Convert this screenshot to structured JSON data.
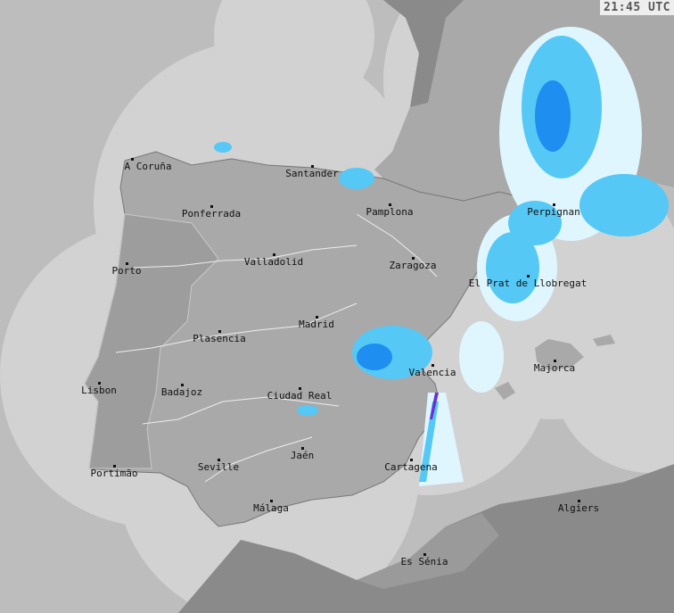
{
  "timestamp": "21:45 UTC",
  "colors": {
    "sea_outside": "#bdbdbd",
    "coverage": "#d2d2d2",
    "land_covered": "#a9a9a9",
    "land_outside": "#8a8a8a",
    "rain_light": "#dff6ff",
    "rain_medium": "#55c8f5",
    "rain_heavy": "#1e8ef0",
    "rain_intense": "#6a2fd8"
  },
  "cities": [
    {
      "name": "A Coruña"
    },
    {
      "name": "Santander"
    },
    {
      "name": "Ponferrada"
    },
    {
      "name": "Pamplona"
    },
    {
      "name": "Perpignan"
    },
    {
      "name": "Porto"
    },
    {
      "name": "Valladolid"
    },
    {
      "name": "Zaragoza"
    },
    {
      "name": "El Prat de Llobregat"
    },
    {
      "name": "Madrid"
    },
    {
      "name": "Plasencia"
    },
    {
      "name": "Majorca"
    },
    {
      "name": "Valencia"
    },
    {
      "name": "Lisbon"
    },
    {
      "name": "Badajoz"
    },
    {
      "name": "Ciudad Real"
    },
    {
      "name": "Jaén"
    },
    {
      "name": "Seville"
    },
    {
      "name": "Portimão"
    },
    {
      "name": "Cartagena"
    },
    {
      "name": "Málaga"
    },
    {
      "name": "Algiers"
    },
    {
      "name": "Es Sénia"
    }
  ]
}
